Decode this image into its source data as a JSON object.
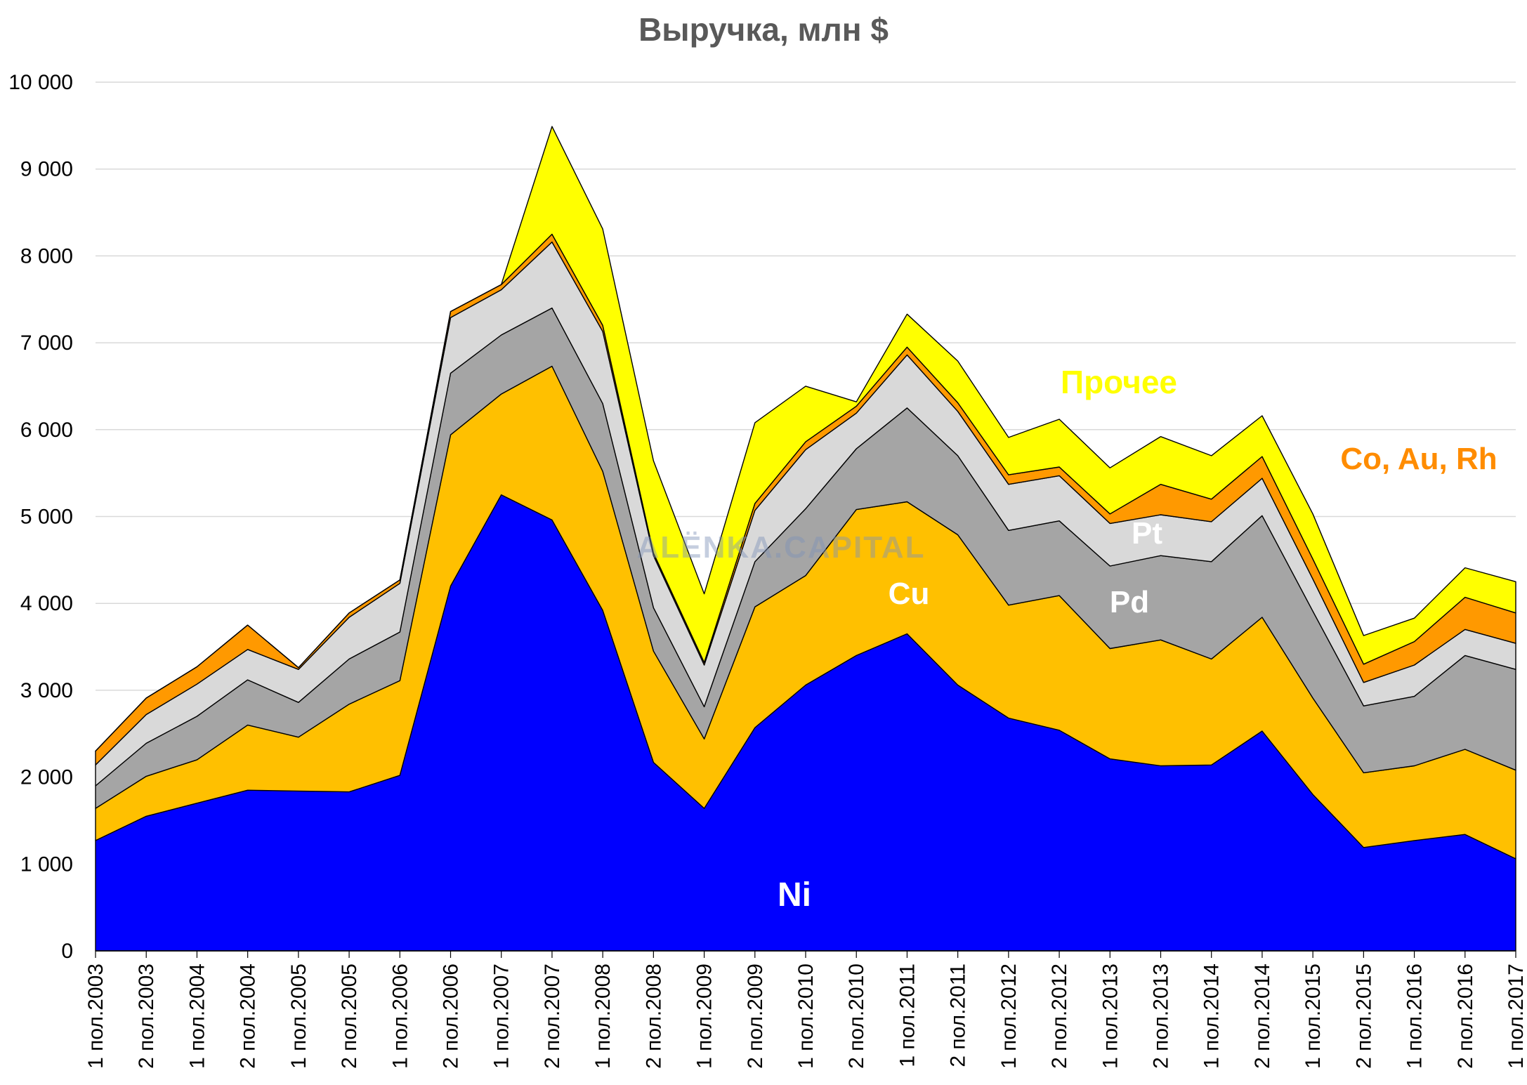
{
  "chart_data": {
    "type": "area",
    "stacked": true,
    "title": "Выручка, млн $",
    "watermark": "ALЁNKA.CAPITAL",
    "ylim": [
      0,
      10000
    ],
    "yticks": [
      0,
      1000,
      2000,
      3000,
      4000,
      5000,
      6000,
      7000,
      8000,
      9000,
      10000
    ],
    "ytick_labels": [
      "0",
      "1 000",
      "2 000",
      "3 000",
      "4 000",
      "5 000",
      "6 000",
      "7 000",
      "8 000",
      "9 000",
      "10 000"
    ],
    "grid": true,
    "categories": [
      "1 пол.2003",
      "2 пол.2003",
      "1 пол.2004",
      "2 пол.2004",
      "1 пол.2005",
      "2 пол.2005",
      "1 пол.2006",
      "2 пол.2006",
      "1 пол.2007",
      "2 пол.2007",
      "1 пол.2008",
      "2 пол.2008",
      "1 пол.2009",
      "2 пол.2009",
      "1 пол.2010",
      "2 пол.2010",
      "1 пол.2011",
      "2 пол.2011",
      "1 пол.2012",
      "2 пол.2012",
      "1 пол.2013",
      "2 пол.2013",
      "1 пол.2014",
      "2 пол.2014",
      "1 пол.2015",
      "2 пол.2015",
      "1 пол.2016",
      "2 пол.2016",
      "1 пол.2017"
    ],
    "series": [
      {
        "name": "Ni",
        "color": "#0000ff",
        "label_color": "#ffffff",
        "values": [
          1270,
          1550,
          1700,
          1850,
          1840,
          1830,
          2020,
          4200,
          5250,
          4960,
          3920,
          2170,
          1640,
          2570,
          3060,
          3400,
          3650,
          3060,
          2680,
          2540,
          2210,
          2130,
          2140,
          2530,
          1800,
          1190,
          1270,
          1340,
          1060
        ]
      },
      {
        "name": "Cu",
        "color": "#ffc000",
        "label_color": "#ffffff",
        "values": [
          370,
          460,
          500,
          750,
          620,
          1010,
          1090,
          1740,
          1160,
          1770,
          1600,
          1280,
          800,
          1390,
          1260,
          1680,
          1520,
          1730,
          1300,
          1550,
          1270,
          1450,
          1220,
          1310,
          1110,
          860,
          860,
          980,
          1020
        ]
      },
      {
        "name": "Pd",
        "color": "#a5a5a5",
        "label_color": "#ffffff",
        "values": [
          260,
          380,
          500,
          520,
          400,
          520,
          560,
          710,
          680,
          670,
          780,
          500,
          370,
          520,
          770,
          700,
          1080,
          910,
          860,
          860,
          950,
          970,
          1120,
          1170,
          1000,
          770,
          800,
          1080,
          1160
        ]
      },
      {
        "name": "Pt",
        "color": "#d9d9d9",
        "label_color": "#ffffff",
        "values": [
          240,
          330,
          370,
          350,
          380,
          480,
          560,
          640,
          520,
          760,
          830,
          600,
          480,
          590,
          680,
          410,
          610,
          510,
          530,
          520,
          490,
          470,
          460,
          430,
          370,
          270,
          360,
          300,
          300
        ]
      },
      {
        "name": "Co, Au, Rh",
        "color": "#ff9900",
        "label_color": "#ff8c00",
        "values": [
          160,
          190,
          200,
          280,
          20,
          50,
          40,
          70,
          60,
          90,
          70,
          30,
          30,
          80,
          90,
          80,
          90,
          100,
          110,
          100,
          110,
          350,
          260,
          250,
          230,
          210,
          270,
          370,
          350
        ]
      },
      {
        "name": "Прочее",
        "color": "#ffff00",
        "label_color": "#ffff00",
        "values": [
          0,
          0,
          0,
          0,
          0,
          0,
          0,
          0,
          0,
          1240,
          1110,
          1060,
          790,
          930,
          640,
          50,
          380,
          480,
          430,
          550,
          530,
          550,
          500,
          470,
          520,
          330,
          270,
          340,
          360
        ]
      }
    ]
  }
}
